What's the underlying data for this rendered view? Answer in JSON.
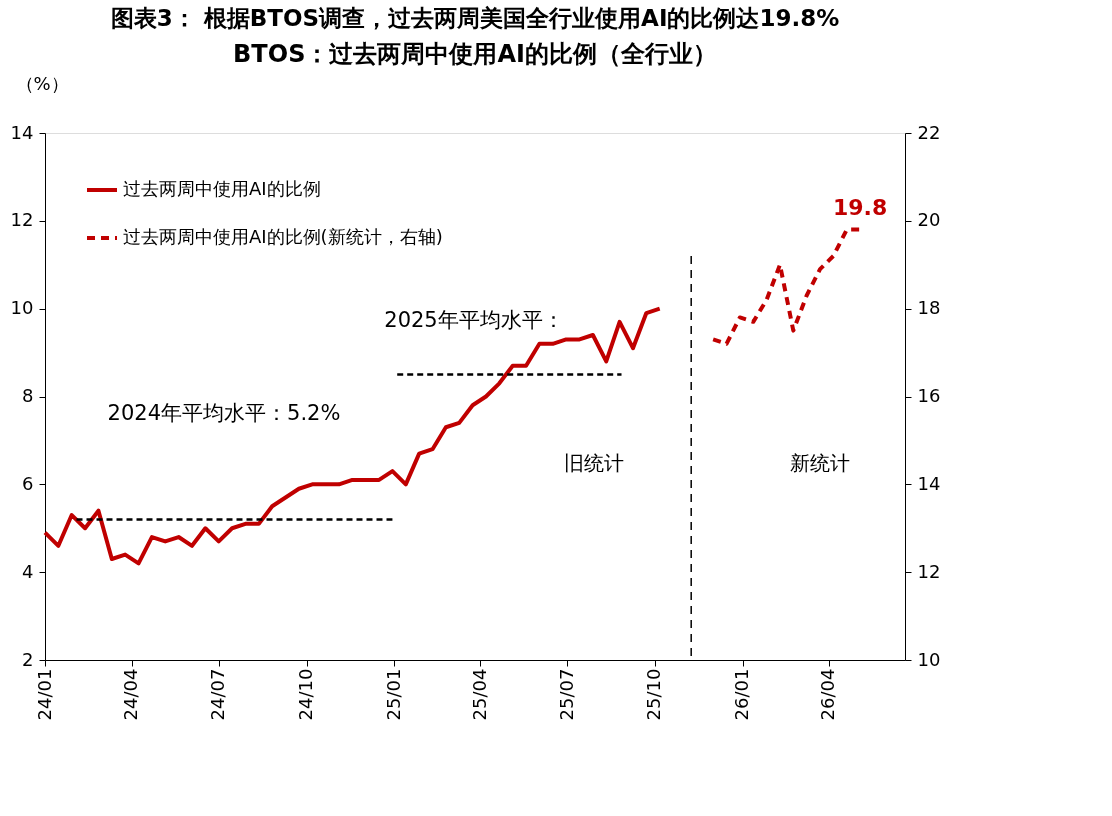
{
  "chart_data": {
    "type": "line",
    "title": "图表3： 根据BTOS调查，过去两周美国全行业使用AI的比例达19.8%",
    "subtitle": "BTOS：过去两周中使用AI的比例（全行业）",
    "ylabel": "（%）",
    "x": [
      "2024-01-01",
      "2024-01-15",
      "2024-01-29",
      "2024-02-12",
      "2024-02-26",
      "2024-03-11",
      "2024-03-25",
      "2024-04-08",
      "2024-04-22",
      "2024-05-06",
      "2024-05-20",
      "2024-06-03",
      "2024-06-17",
      "2024-07-01",
      "2024-07-15",
      "2024-07-29",
      "2024-08-12",
      "2024-08-26",
      "2024-09-09",
      "2024-09-23",
      "2024-10-07",
      "2024-10-21",
      "2024-11-04",
      "2024-11-18",
      "2024-12-02",
      "2024-12-16",
      "2024-12-30",
      "2025-01-13",
      "2025-01-27",
      "2025-02-10",
      "2025-02-24",
      "2025-03-10",
      "2025-03-24",
      "2025-04-07",
      "2025-04-21",
      "2025-05-05",
      "2025-05-19",
      "2025-06-02",
      "2025-06-16",
      "2025-06-30",
      "2025-07-14",
      "2025-07-28",
      "2025-08-11",
      "2025-08-25",
      "2025-09-08",
      "2025-09-22",
      "2025-10-06"
    ],
    "series": [
      {
        "name": "过去两周中使用AI的比例",
        "color": "#c00000",
        "line_style": "solid",
        "values": [
          4.9,
          4.6,
          5.3,
          5.0,
          5.4,
          4.3,
          4.4,
          4.2,
          4.8,
          4.7,
          4.8,
          4.6,
          5.0,
          4.7,
          5.0,
          5.1,
          5.1,
          5.5,
          5.7,
          5.9,
          6.0,
          6.0,
          6.0,
          6.1,
          6.1,
          6.1,
          6.3,
          6.0,
          6.7,
          6.8,
          7.3,
          7.4,
          7.8,
          8.0,
          8.3,
          8.7,
          8.7,
          9.2,
          9.2,
          9.3,
          9.3,
          9.4,
          8.8,
          9.7,
          9.1,
          9.9,
          10.0
        ]
      },
      {
        "name": "过去两周中使用AI的比例(新统计，右轴)",
        "color": "#c00000",
        "line_style": "dashed",
        "axis": "y2",
        "x": [
          "2025-12-01",
          "2025-12-15",
          "2025-12-29",
          "2026-01-12",
          "2026-01-26",
          "2026-02-09",
          "2026-02-23",
          "2026-03-09",
          "2026-03-23",
          "2026-04-06",
          "2026-04-20",
          "2026-05-04"
        ],
        "values": [
          17.3,
          17.2,
          17.8,
          17.7,
          18.2,
          19.0,
          17.5,
          18.3,
          18.9,
          19.2,
          19.8,
          19.8
        ],
        "value_labels": [
          null,
          null,
          null,
          null,
          null,
          null,
          null,
          null,
          null,
          null,
          null,
          "19.8"
        ]
      },
      {
        "type": "line",
        "color": "#000000",
        "line_style": "dashed",
        "x": [
          "2024-02-03",
          "2024-12-30"
        ],
        "values": [
          5.2,
          5.2
        ]
      },
      {
        "type": "line",
        "color": "#000000",
        "line_style": "dashed",
        "x": [
          "2025-01-04",
          "2025-08-27"
        ],
        "values": [
          8.5,
          8.5
        ]
      }
    ],
    "ref_lines": [
      {
        "axis": "x",
        "value": "2025-11-08",
        "color": "#000000",
        "line_style": "dashed"
      }
    ],
    "annotations": [
      "2024年平均水平：5.2%",
      "2025年平均水平：",
      "旧统计",
      "新统计"
    ],
    "xlim": [
      "2024-01-01",
      "2026-06-20"
    ],
    "xticks": [
      {
        "value": "2024-01-01",
        "label": "24/01"
      },
      {
        "value": "2024-04-01",
        "label": "24/04"
      },
      {
        "value": "2024-07-01",
        "label": "24/07"
      },
      {
        "value": "2024-10-01",
        "label": "24/10"
      },
      {
        "value": "2025-01-01",
        "label": "25/01"
      },
      {
        "value": "2025-04-01",
        "label": "25/04"
      },
      {
        "value": "2025-07-01",
        "label": "25/07"
      },
      {
        "value": "2025-10-01",
        "label": "25/10"
      },
      {
        "value": "2026-01-01",
        "label": "26/01"
      },
      {
        "value": "2026-04-01",
        "label": "26/04"
      }
    ],
    "ylim": [
      2,
      14
    ],
    "yticks": [
      2,
      4,
      6,
      8,
      10,
      12,
      14
    ],
    "y2lim": [
      10,
      22
    ],
    "y2ticks": [
      10,
      12,
      14,
      16,
      18,
      20,
      22
    ],
    "legend": "top left"
  }
}
